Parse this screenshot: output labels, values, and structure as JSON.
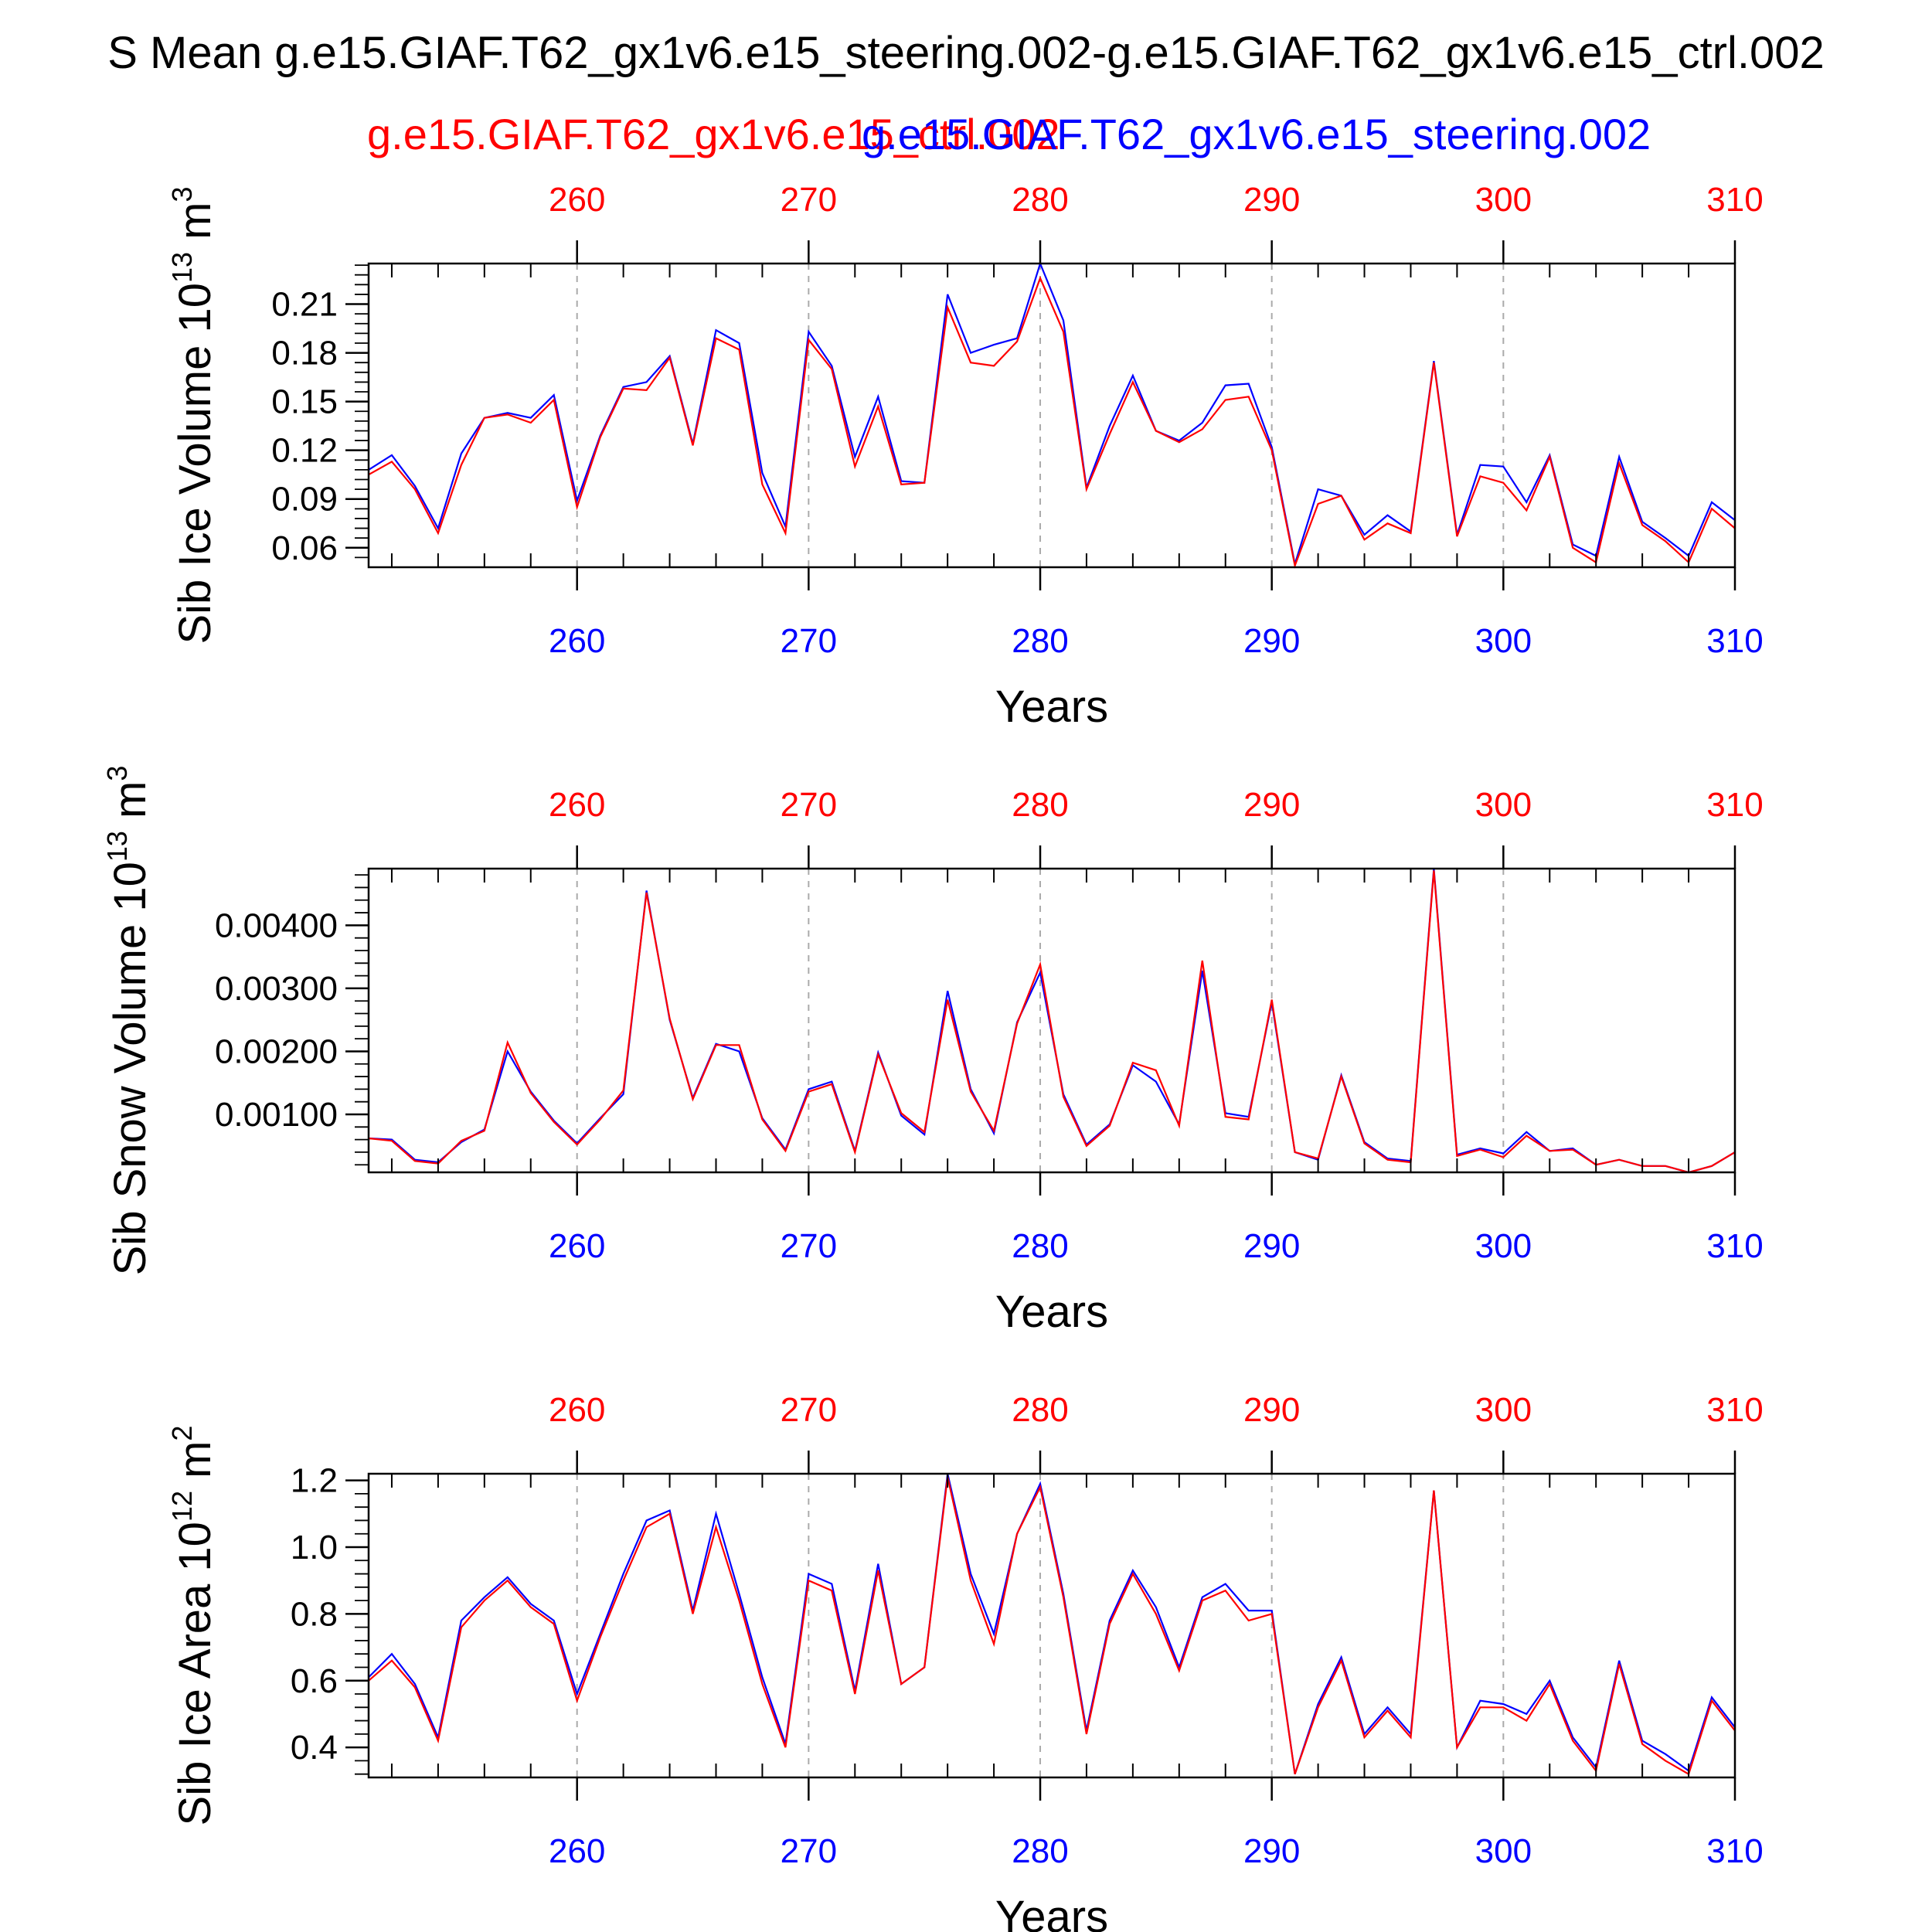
{
  "title": "S Mean g.e15.GIAF.T62_gx1v6.e15_steering.002-g.e15.GIAF.T62_gx1v6.e15_ctrl.002",
  "legend": {
    "red_label": "g.e15.GIAF.T62_gx1v6.e15_ctrl.002",
    "blue_label": "g.e15.GIAF.T62_gx1v6.e15_steering.002"
  },
  "colors": {
    "ctrl": "#ff0000",
    "steering": "#0000ff",
    "axis": "#000000",
    "grid": "#aaaaaa"
  },
  "chart_data": [
    {
      "type": "line",
      "ylabel_main": "Sib Ice Volume 10",
      "ylabel_exp": "13",
      "ylabel_unit": " m",
      "ylabel_unit_exp": "3",
      "xlabel": "Years",
      "xlim": [
        251,
        310
      ],
      "ylim": [
        0.048,
        0.235
      ],
      "yticks": [
        0.06,
        0.09,
        0.12,
        0.15,
        0.18,
        0.21
      ],
      "ytick_labels": [
        "0.06",
        "0.09",
        "0.12",
        "0.15",
        "0.18",
        "0.21"
      ],
      "xticks": [
        260,
        270,
        280,
        290,
        300,
        310
      ],
      "xtick_labels": [
        "260",
        "270",
        "280",
        "290",
        "300",
        "310"
      ],
      "grid": "vertical dashed at major x ticks",
      "x": [
        251,
        252,
        253,
        254,
        255,
        256,
        257,
        258,
        259,
        260,
        261,
        262,
        263,
        264,
        265,
        266,
        267,
        268,
        269,
        270,
        271,
        272,
        273,
        274,
        275,
        276,
        277,
        278,
        279,
        280,
        281,
        282,
        283,
        284,
        285,
        286,
        287,
        288,
        289,
        290,
        291,
        292,
        293,
        294,
        295,
        296,
        297,
        298,
        299,
        300,
        301,
        302,
        303,
        304,
        305,
        306,
        307,
        308,
        309,
        310
      ],
      "series": [
        {
          "name": "g.e15.GIAF.T62_gx1v6.e15_steering.002",
          "color": "#0000ff",
          "values": [
            0.108,
            0.117,
            0.098,
            0.072,
            0.118,
            0.14,
            0.143,
            0.14,
            0.154,
            0.089,
            0.129,
            0.159,
            0.162,
            0.178,
            0.124,
            0.194,
            0.186,
            0.106,
            0.073,
            0.193,
            0.172,
            0.116,
            0.153,
            0.101,
            0.1,
            0.216,
            0.18,
            0.185,
            0.189,
            0.235,
            0.2,
            0.097,
            0.135,
            0.166,
            0.132,
            0.126,
            0.137,
            0.16,
            0.161,
            0.122,
            0.05,
            0.096,
            0.092,
            0.068,
            0.08,
            0.07,
            0.175,
            0.068,
            0.111,
            0.11,
            0.088,
            0.117,
            0.062,
            0.055,
            0.116,
            0.076,
            0.066,
            0.055,
            0.088,
            0.077
          ]
        },
        {
          "name": "g.e15.GIAF.T62_gx1v6.e15_ctrl.002",
          "color": "#ff0000",
          "values": [
            0.105,
            0.113,
            0.096,
            0.069,
            0.111,
            0.14,
            0.142,
            0.137,
            0.151,
            0.085,
            0.128,
            0.158,
            0.157,
            0.177,
            0.123,
            0.189,
            0.182,
            0.099,
            0.069,
            0.188,
            0.17,
            0.11,
            0.147,
            0.099,
            0.1,
            0.208,
            0.174,
            0.172,
            0.187,
            0.226,
            0.193,
            0.096,
            0.13,
            0.162,
            0.132,
            0.125,
            0.133,
            0.151,
            0.153,
            0.12,
            0.049,
            0.087,
            0.092,
            0.065,
            0.075,
            0.069,
            0.174,
            0.067,
            0.104,
            0.1,
            0.083,
            0.116,
            0.06,
            0.051,
            0.112,
            0.074,
            0.064,
            0.051,
            0.084,
            0.072
          ]
        }
      ]
    },
    {
      "type": "line",
      "ylabel_main": "Sib Snow Volume 10",
      "ylabel_exp": "13",
      "ylabel_unit": " m",
      "ylabel_unit_exp": "3",
      "xlabel": "Years",
      "xlim": [
        251,
        310
      ],
      "ylim": [
        8e-05,
        0.0049
      ],
      "yticks": [
        0.001,
        0.002,
        0.003,
        0.004
      ],
      "ytick_labels": [
        "0.00100",
        "0.00200",
        "0.00300",
        "0.00400"
      ],
      "xticks": [
        260,
        270,
        280,
        290,
        300,
        310
      ],
      "xtick_labels": [
        "260",
        "270",
        "280",
        "290",
        "300",
        "310"
      ],
      "grid": "vertical dashed at major x ticks",
      "x": [
        251,
        252,
        253,
        254,
        255,
        256,
        257,
        258,
        259,
        260,
        261,
        262,
        263,
        264,
        265,
        266,
        267,
        268,
        269,
        270,
        271,
        272,
        273,
        274,
        275,
        276,
        277,
        278,
        279,
        280,
        281,
        282,
        283,
        284,
        285,
        286,
        287,
        288,
        289,
        290,
        291,
        292,
        293,
        294,
        295,
        296,
        297,
        298,
        299,
        300,
        301,
        302,
        303,
        304,
        305,
        306,
        307,
        308,
        309,
        310
      ],
      "series": [
        {
          "name": "g.e15.GIAF.T62_gx1v6.e15_steering.002",
          "color": "#0000ff",
          "values": [
            0.00062,
            0.0006,
            0.00028,
            0.00024,
            0.00056,
            0.00076,
            0.002,
            0.00136,
            0.0009,
            0.00054,
            0.00094,
            0.00132,
            0.00455,
            0.0025,
            0.00126,
            0.00212,
            0.002,
            0.00094,
            0.00044,
            0.0014,
            0.00152,
            0.00042,
            0.00198,
            0.00098,
            0.00068,
            0.00296,
            0.0014,
            0.0007,
            0.00246,
            0.00325,
            0.00132,
            0.00052,
            0.00084,
            0.00178,
            0.00152,
            0.00084,
            0.00328,
            0.00102,
            0.00096,
            0.00278,
            0.0004,
            0.00028,
            0.00162,
            0.00056,
            0.0003,
            0.00026,
            0.0049,
            0.00036,
            0.00046,
            0.00038,
            0.00072,
            0.00042,
            0.00046,
            0.0002,
            0.00028,
            0.00018,
            0.00018,
            8e-05,
            0.00018,
            0.0004
          ]
        },
        {
          "name": "g.e15.GIAF.T62_gx1v6.e15_ctrl.002",
          "color": "#ff0000",
          "values": [
            0.00062,
            0.00058,
            0.00026,
            0.00022,
            0.00058,
            0.00074,
            0.00214,
            0.00134,
            0.00088,
            0.00052,
            0.00092,
            0.00138,
            0.00452,
            0.00252,
            0.00124,
            0.0021,
            0.0021,
            0.00092,
            0.00042,
            0.00136,
            0.00148,
            0.0004,
            0.00195,
            0.00102,
            0.00072,
            0.00282,
            0.00136,
            0.00074,
            0.00244,
            0.00338,
            0.00128,
            0.0005,
            0.00082,
            0.00182,
            0.0017,
            0.00082,
            0.00344,
            0.00096,
            0.00092,
            0.00282,
            0.0004,
            0.0003,
            0.0016,
            0.00054,
            0.00028,
            0.00024,
            0.00487,
            0.00034,
            0.00044,
            0.00032,
            0.00066,
            0.00042,
            0.00044,
            0.0002,
            0.00028,
            0.00018,
            0.00018,
            8e-05,
            0.00018,
            0.0004
          ]
        }
      ]
    },
    {
      "type": "line",
      "ylabel_main": "Sib Ice Area 10",
      "ylabel_exp": "12",
      "ylabel_unit": " m",
      "ylabel_unit_exp": "2",
      "xlabel": "Years",
      "xlim": [
        251,
        310
      ],
      "ylim": [
        0.31,
        1.22
      ],
      "yticks": [
        0.4,
        0.6,
        0.8,
        1.0,
        1.2
      ],
      "ytick_labels": [
        "0.4",
        "0.6",
        "0.8",
        "1.0",
        "1.2"
      ],
      "xticks": [
        260,
        270,
        280,
        290,
        300,
        310
      ],
      "xtick_labels": [
        "260",
        "270",
        "280",
        "290",
        "300",
        "310"
      ],
      "grid": "vertical dashed at major x ticks",
      "x": [
        251,
        252,
        253,
        254,
        255,
        256,
        257,
        258,
        259,
        260,
        261,
        262,
        263,
        264,
        265,
        266,
        267,
        268,
        269,
        270,
        271,
        272,
        273,
        274,
        275,
        276,
        277,
        278,
        279,
        280,
        281,
        282,
        283,
        284,
        285,
        286,
        287,
        288,
        289,
        290,
        291,
        292,
        293,
        294,
        295,
        296,
        297,
        298,
        299,
        300,
        301,
        302,
        303,
        304,
        305,
        306,
        307,
        308,
        309,
        310
      ],
      "series": [
        {
          "name": "g.e15.GIAF.T62_gx1v6.e15_steering.002",
          "color": "#0000ff",
          "values": [
            0.61,
            0.68,
            0.59,
            0.43,
            0.78,
            0.85,
            0.91,
            0.83,
            0.78,
            0.56,
            0.74,
            0.92,
            1.08,
            1.11,
            0.81,
            1.1,
            0.86,
            0.61,
            0.41,
            0.92,
            0.89,
            0.57,
            0.95,
            0.59,
            0.64,
            1.22,
            0.92,
            0.74,
            1.04,
            1.19,
            0.86,
            0.45,
            0.78,
            0.93,
            0.82,
            0.64,
            0.85,
            0.89,
            0.81,
            0.81,
            0.32,
            0.53,
            0.67,
            0.44,
            0.52,
            0.44,
            1.17,
            0.4,
            0.54,
            0.53,
            0.5,
            0.6,
            0.43,
            0.34,
            0.66,
            0.42,
            0.38,
            0.33,
            0.55,
            0.46
          ]
        },
        {
          "name": "g.e15.GIAF.T62_gx1v6.e15_ctrl.002",
          "color": "#ff0000",
          "values": [
            0.6,
            0.66,
            0.58,
            0.42,
            0.76,
            0.84,
            0.9,
            0.82,
            0.77,
            0.54,
            0.73,
            0.9,
            1.06,
            1.1,
            0.8,
            1.06,
            0.84,
            0.59,
            0.4,
            0.9,
            0.87,
            0.56,
            0.93,
            0.59,
            0.64,
            1.21,
            0.9,
            0.71,
            1.04,
            1.18,
            0.85,
            0.44,
            0.77,
            0.92,
            0.8,
            0.63,
            0.84,
            0.87,
            0.78,
            0.8,
            0.32,
            0.52,
            0.66,
            0.43,
            0.51,
            0.43,
            1.17,
            0.4,
            0.52,
            0.52,
            0.48,
            0.59,
            0.42,
            0.33,
            0.65,
            0.41,
            0.36,
            0.32,
            0.54,
            0.45
          ]
        }
      ]
    }
  ]
}
